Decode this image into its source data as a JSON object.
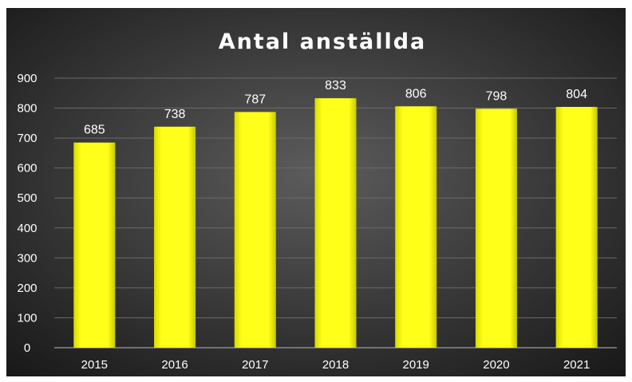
{
  "chart_data": {
    "type": "bar",
    "title": "Antal anställda",
    "categories": [
      "2015",
      "2016",
      "2017",
      "2018",
      "2019",
      "2020",
      "2021"
    ],
    "values": [
      685,
      738,
      787,
      833,
      806,
      798,
      804
    ],
    "xlabel": "",
    "ylabel": "",
    "ylim": [
      0,
      900
    ],
    "yticks": [
      0,
      100,
      200,
      300,
      400,
      500,
      600,
      700,
      800,
      900
    ],
    "grid": true,
    "data_labels": true,
    "legend": "none",
    "colors": {
      "background_center": "#5c5c5c",
      "background_edge": "#171717",
      "bar": "#ffff1a",
      "bar_edge": "#c8c800",
      "grid": "#6a6a6a",
      "text": "#ffffff"
    }
  }
}
